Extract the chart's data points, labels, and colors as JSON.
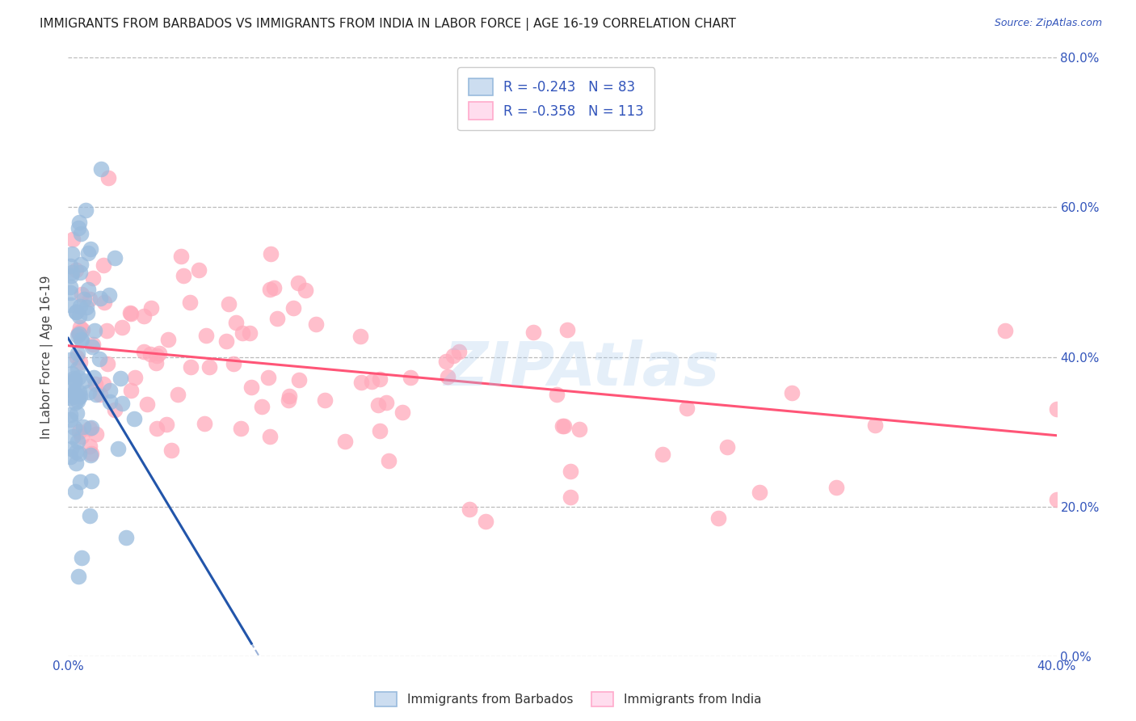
{
  "title": "IMMIGRANTS FROM BARBADOS VS IMMIGRANTS FROM INDIA IN LABOR FORCE | AGE 16-19 CORRELATION CHART",
  "source": "Source: ZipAtlas.com",
  "ylabel": "In Labor Force | Age 16-19",
  "watermark": "ZIPAtlas",
  "legend_barbados": "Immigrants from Barbados",
  "legend_india": "Immigrants from India",
  "R_barbados": -0.243,
  "N_barbados": 83,
  "R_india": -0.358,
  "N_india": 113,
  "xlim": [
    0.0,
    0.4
  ],
  "ylim": [
    0.0,
    0.8
  ],
  "yticks": [
    0.0,
    0.2,
    0.4,
    0.6,
    0.8
  ],
  "color_barbados": "#99BBDD",
  "color_india": "#FFAABB",
  "color_barbados_line": "#2255AA",
  "color_india_line": "#FF5577",
  "color_axis_labels": "#3355BB",
  "background_color": "#FFFFFF",
  "title_fontsize": 11,
  "axis_label_fontsize": 11,
  "tick_fontsize": 11,
  "legend_fontsize": 12,
  "barbados_intercept": 0.425,
  "barbados_slope": -5.5,
  "india_intercept": 0.415,
  "india_slope": -0.3
}
